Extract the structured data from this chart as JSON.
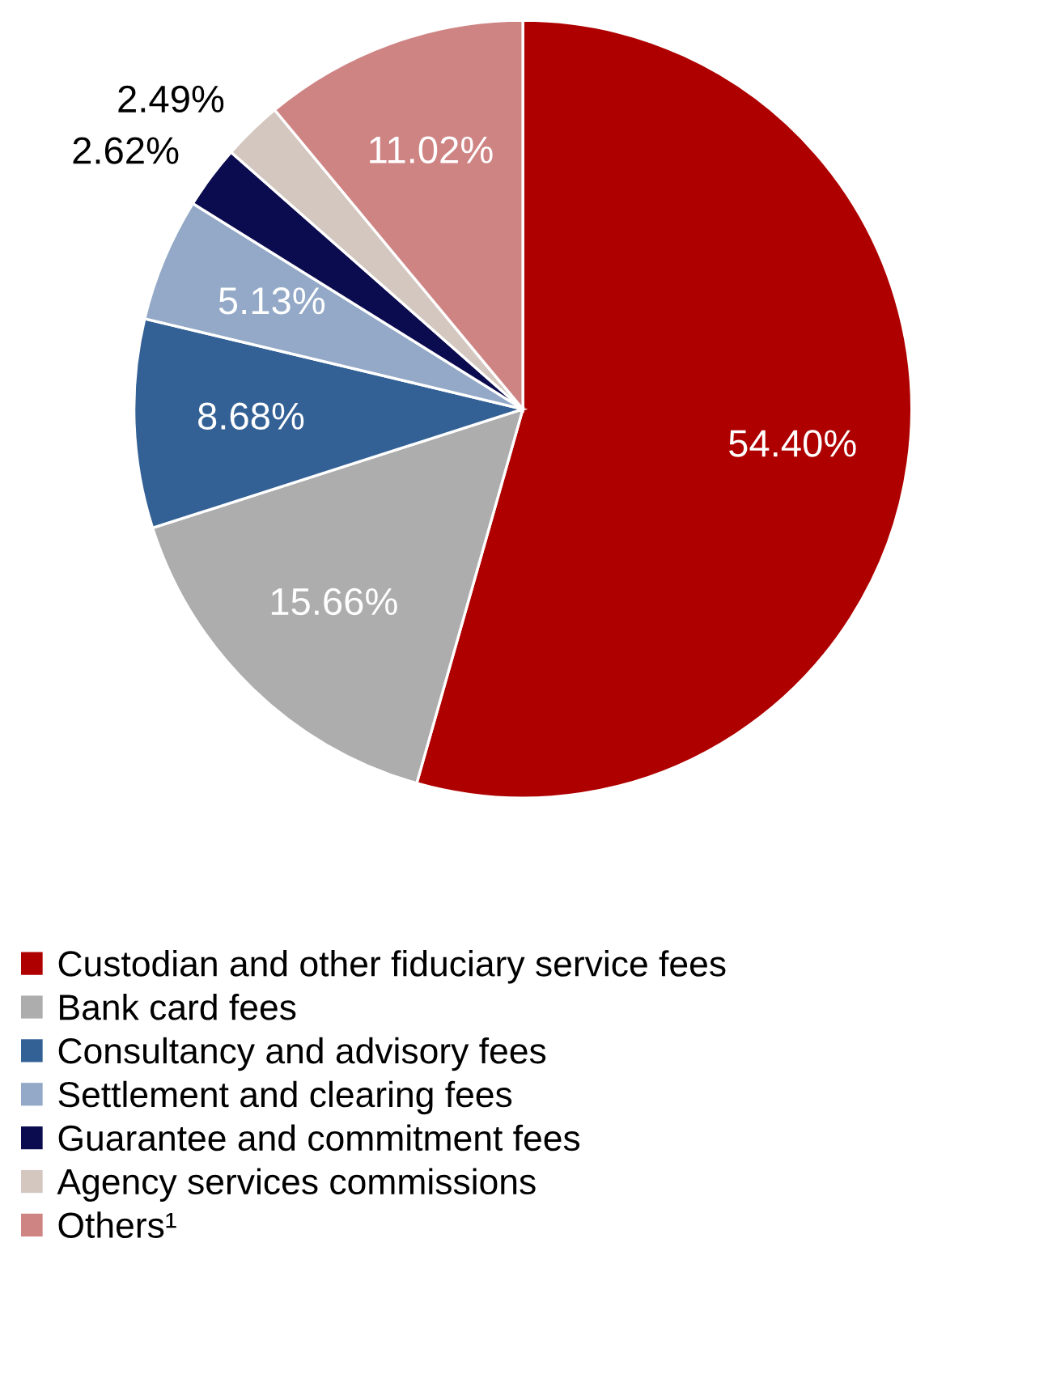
{
  "chart_data": {
    "type": "pie",
    "categories": [
      "Custodian and other fiduciary service fees",
      "Bank card fees",
      "Consultancy and advisory fees",
      "Settlement and clearing fees",
      "Guarantee and commitment fees",
      "Agency services commissions",
      "Others¹"
    ],
    "values": [
      54.4,
      15.66,
      8.68,
      5.13,
      2.62,
      2.49,
      11.02
    ],
    "value_labels": [
      "54.40%",
      "15.66%",
      "8.68%",
      "5.13%",
      "2.62%",
      "2.49%",
      "11.02%"
    ],
    "colors": [
      "#af0000",
      "#adadad",
      "#336195",
      "#93a9c7",
      "#0b0b4f",
      "#d3c7c0",
      "#cf8484"
    ],
    "legend": "bottom"
  }
}
